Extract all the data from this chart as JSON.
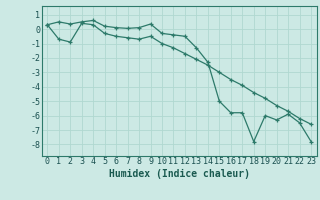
{
  "xlabel": "Humidex (Indice chaleur)",
  "ylabel": "",
  "background_color": "#cce9e4",
  "grid_color": "#b0d8d0",
  "line_color": "#2d7a6a",
  "xlim": [
    -0.5,
    23.5
  ],
  "ylim": [
    -8.8,
    1.6
  ],
  "yticks": [
    1,
    0,
    -1,
    -2,
    -3,
    -4,
    -5,
    -6,
    -7,
    -8
  ],
  "xticks": [
    0,
    1,
    2,
    3,
    4,
    5,
    6,
    7,
    8,
    9,
    10,
    11,
    12,
    13,
    14,
    15,
    16,
    17,
    18,
    19,
    20,
    21,
    22,
    23
  ],
  "series1_x": [
    0,
    1,
    2,
    3,
    4,
    5,
    6,
    7,
    8,
    9,
    10,
    11,
    12,
    13,
    14,
    15,
    16,
    17,
    18,
    19,
    20,
    21,
    22,
    23
  ],
  "series1_y": [
    0.3,
    0.5,
    0.35,
    0.5,
    0.6,
    0.2,
    0.1,
    0.05,
    0.1,
    0.35,
    -0.3,
    -0.4,
    -0.5,
    -1.3,
    -2.3,
    -5.0,
    -5.8,
    -5.8,
    -7.8,
    -6.0,
    -6.3,
    -5.9,
    -6.5,
    -7.8
  ],
  "series2_x": [
    0,
    1,
    2,
    3,
    4,
    5,
    6,
    7,
    8,
    9,
    10,
    11,
    12,
    13,
    14,
    15,
    16,
    17,
    18,
    19,
    20,
    21,
    22,
    23
  ],
  "series2_y": [
    0.3,
    -0.7,
    -0.9,
    0.4,
    0.3,
    -0.3,
    -0.5,
    -0.6,
    -0.7,
    -0.5,
    -1.0,
    -1.3,
    -1.7,
    -2.1,
    -2.5,
    -3.0,
    -3.5,
    -3.9,
    -4.4,
    -4.8,
    -5.3,
    -5.7,
    -6.2,
    -6.6
  ],
  "xlabel_color": "#1a5a50",
  "xlabel_fontsize": 7,
  "tick_fontsize": 6,
  "tick_color": "#1a5050",
  "spine_color": "#2d7a6a"
}
